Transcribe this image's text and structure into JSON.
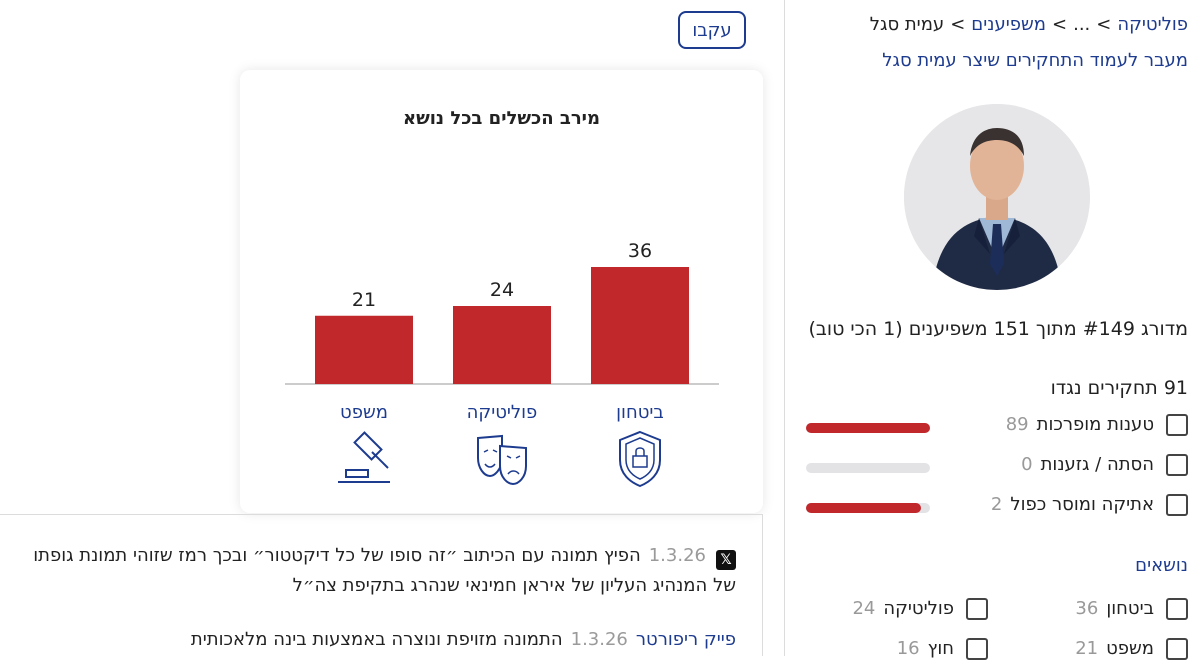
{
  "breadcrumb": {
    "items": [
      "פוליטיקה",
      "...",
      "משפיענים",
      "עמית סגל"
    ],
    "separator": ">"
  },
  "profile_link": "מעבר לעמוד התחקירים שיצר עמית סגל",
  "rank_text": "מדורג #149 מתוך 151 משפיענים (1 הכי טוב)",
  "investigations": {
    "count": "91",
    "label": "תחקירים נגדו"
  },
  "claim_categories": [
    {
      "label": "טענות מופרכות",
      "count": "89",
      "fill": 1.0
    },
    {
      "label": "הסתה / גזענות",
      "count": "0",
      "fill": 0.0
    },
    {
      "label": "אתיקה ומוסר כפול",
      "count": "2",
      "fill": 0.93
    }
  ],
  "topics": {
    "title": "נושאים",
    "items": [
      {
        "label": "ביטחון",
        "count": "36"
      },
      {
        "label": "פוליטיקה",
        "count": "24"
      },
      {
        "label": "משפט",
        "count": "21"
      },
      {
        "label": "חוץ",
        "count": "16"
      }
    ]
  },
  "follow_label": "עקבו",
  "chart_data": {
    "type": "bar",
    "title": "מירב הכשלים בכל נושא",
    "categories": [
      "ביטחון",
      "פוליטיקה",
      "משפט"
    ],
    "values": [
      36,
      24,
      21
    ],
    "icons": [
      "shield-lock-icon",
      "theater-masks-icon",
      "gavel-icon"
    ],
    "ylim": [
      0,
      40
    ],
    "bar_color": "#c0282c",
    "label_color": "#1d3b8f"
  },
  "feed": [
    {
      "source_icon": "x-logo-icon",
      "date": "1.3.26",
      "line1": "הפיץ תמונה עם הכיתוב ״זה סופו של כל דיקטטור״ ובכך רמז שזוהי תמונת גופתו",
      "line2": "של המנהיג העליון של איראן חמינאי שנהרג בתקיפת צה״ל"
    },
    {
      "source": "פייק ריפורטר",
      "date": "1.3.26",
      "text": "התמונה מזויפת ונוצרה באמצעות בינה מלאכותית"
    }
  ],
  "colors": {
    "accent_blue": "#1d3b8f",
    "accent_red": "#c0282c"
  }
}
